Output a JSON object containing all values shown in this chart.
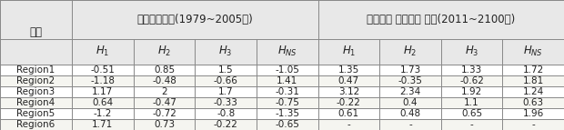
{
  "header1": [
    "지역",
    "실제관측자료(1979~2005년)",
    "기후변화 시나리오 자료(2011~2100년)"
  ],
  "header1_cols": [
    1,
    4,
    4
  ],
  "header2": [
    "",
    "H_1",
    "H_2",
    "H_3",
    "H_NS",
    "H_1",
    "H_2",
    "H_3",
    "H_NS"
  ],
  "rows": [
    [
      "Region1",
      "-0.51",
      "0.85",
      "1.5",
      "-1.05",
      "1.35",
      "1.73",
      "1.33",
      "1.72"
    ],
    [
      "Region2",
      "-1.18",
      "-0.48",
      "-0.66",
      "1.41",
      "0.47",
      "-0.35",
      "-0.62",
      "1.81"
    ],
    [
      "Region3",
      "1.17",
      "2",
      "1.7",
      "-0.31",
      "3.12",
      "2.34",
      "1.92",
      "1.24"
    ],
    [
      "Region4",
      "0.64",
      "-0.47",
      "-0.33",
      "-0.75",
      "-0.22",
      "0.4",
      "1.1",
      "0.63"
    ],
    [
      "Region5",
      "-1.2",
      "-0.72",
      "-0.8",
      "-1.35",
      "0.61",
      "0.48",
      "0.65",
      "1.96"
    ],
    [
      "Region6",
      "1.71",
      "0.73",
      "-0.22",
      "-0.65",
      "-",
      "-",
      "-",
      "-"
    ]
  ],
  "background_color": "#ffffff",
  "header_bg": "#e8e8e8",
  "line_color": "#888888",
  "text_color": "#222222",
  "fig_width": 6.2,
  "fig_height": 1.43,
  "dpi": 100
}
